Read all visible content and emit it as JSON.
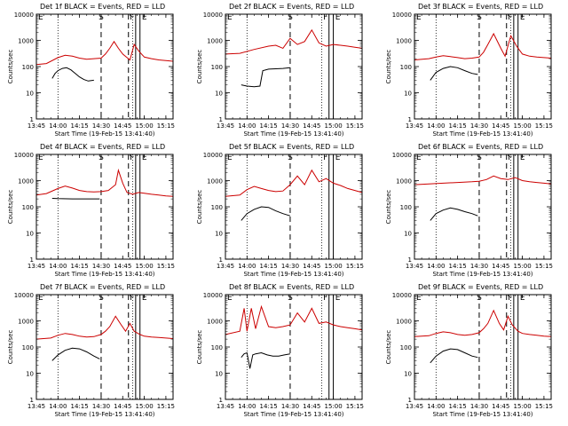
{
  "figure": {
    "background": "#ffffff",
    "event_color": "#000000",
    "lld_color": "#cc0000"
  },
  "x_tick_labels": [
    "13:45",
    "14:00",
    "14:15",
    "14:30",
    "14:45",
    "15:00",
    "15:15"
  ],
  "y_tick_labels": [
    "1",
    "10",
    "100",
    "1000",
    "10000"
  ],
  "ylabel": "Counts/sec",
  "xlabel": "Start Time (19-Feb-15 13:41:40)",
  "markers": {
    "start": "S",
    "flare": "F",
    "end": "E",
    "left": "E"
  },
  "chart_data": [
    {
      "type": "line",
      "title": "Det 1f BLACK = Events, RED = LLD",
      "xlabel": "Start Time (19-Feb-15 13:41:40)",
      "ylabel": "Counts/sec",
      "yscale": "log",
      "ylim": [
        1,
        10000
      ],
      "xlim": [
        "13:45",
        "15:20"
      ],
      "markers": {
        "dotted": [
          "14:00",
          "14:52"
        ],
        "dashed": [
          "14:30",
          "14:49"
        ],
        "solid": [
          "14:54",
          "14:57"
        ]
      },
      "series": [
        {
          "name": "Events",
          "color": "#000000",
          "x": [
            "13:56",
            "13:58",
            "14:00",
            "14:03",
            "14:06",
            "14:09",
            "14:12",
            "14:15",
            "14:18",
            "14:21",
            "14:25"
          ],
          "y": [
            35,
            55,
            70,
            85,
            90,
            75,
            55,
            40,
            32,
            28,
            30
          ]
        },
        {
          "name": "LLD",
          "color": "#cc0000",
          "x": [
            "13:45",
            "13:52",
            "14:00",
            "14:05",
            "14:10",
            "14:15",
            "14:20",
            "14:25",
            "14:30",
            "14:33",
            "14:36",
            "14:39",
            "14:42",
            "14:45",
            "14:48",
            "14:50",
            "14:53",
            "14:56",
            "15:00",
            "15:05",
            "15:10",
            "15:15",
            "15:20"
          ],
          "y": [
            120,
            130,
            220,
            270,
            250,
            210,
            190,
            200,
            210,
            300,
            500,
            900,
            500,
            300,
            220,
            180,
            700,
            400,
            230,
            200,
            180,
            170,
            160
          ]
        }
      ]
    },
    {
      "type": "line",
      "title": "Det 2f BLACK = Events, RED = LLD",
      "xlabel": "Start Time (19-Feb-15 13:41:40)",
      "ylabel": "Counts/sec",
      "yscale": "log",
      "ylim": [
        1,
        10000
      ],
      "xlim": [
        "13:45",
        "15:20"
      ],
      "markers": {
        "dotted": [
          "14:00",
          "14:52"
        ],
        "dashed": [
          "14:30"
        ],
        "solid": [
          "14:57",
          "15:00"
        ]
      },
      "series": [
        {
          "name": "Events",
          "color": "#000000",
          "x": [
            "13:56",
            "14:00",
            "14:05",
            "14:09",
            "14:11",
            "14:15",
            "14:20",
            "14:25",
            "14:30"
          ],
          "y": [
            20,
            18,
            17,
            18,
            70,
            80,
            82,
            85,
            90
          ]
        },
        {
          "name": "LLD",
          "color": "#cc0000",
          "x": [
            "13:45",
            "13:55",
            "14:05",
            "14:15",
            "14:20",
            "14:25",
            "14:30",
            "14:35",
            "14:40",
            "14:45",
            "14:50",
            "14:55",
            "15:00",
            "15:05",
            "15:10",
            "15:15",
            "15:20"
          ],
          "y": [
            300,
            320,
            450,
            600,
            650,
            500,
            1200,
            700,
            900,
            2500,
            800,
            600,
            700,
            650,
            600,
            550,
            500
          ]
        }
      ]
    },
    {
      "type": "line",
      "title": "Det 3f BLACK = Events, RED = LLD",
      "xlabel": "Start Time (19-Feb-15 13:41:40)",
      "ylabel": "Counts/sec",
      "yscale": "log",
      "ylim": [
        1,
        10000
      ],
      "xlim": [
        "13:45",
        "15:20"
      ],
      "markers": {
        "dotted": [
          "14:00",
          "14:52"
        ],
        "dashed": [
          "14:30",
          "14:49"
        ],
        "solid": [
          "14:54",
          "14:57"
        ]
      },
      "series": [
        {
          "name": "Events",
          "color": "#000000",
          "x": [
            "13:56",
            "14:00",
            "14:05",
            "14:10",
            "14:15",
            "14:20",
            "14:25",
            "14:29"
          ],
          "y": [
            30,
            60,
            85,
            100,
            90,
            70,
            55,
            50
          ]
        },
        {
          "name": "LLD",
          "color": "#cc0000",
          "x": [
            "13:45",
            "13:55",
            "14:00",
            "14:05",
            "14:10",
            "14:15",
            "14:20",
            "14:25",
            "14:30",
            "14:33",
            "14:36",
            "14:40",
            "14:45",
            "14:48",
            "14:52",
            "14:56",
            "15:00",
            "15:05",
            "15:10",
            "15:15",
            "15:20"
          ],
          "y": [
            180,
            200,
            230,
            260,
            240,
            220,
            200,
            210,
            230,
            350,
            700,
            1800,
            500,
            250,
            1500,
            600,
            300,
            250,
            230,
            220,
            210
          ]
        }
      ]
    },
    {
      "type": "line",
      "title": "Det 4f BLACK = Events, RED = LLD",
      "xlabel": "Start Time (19-Feb-15 13:41:40)",
      "ylabel": "Counts/sec",
      "yscale": "log",
      "ylim": [
        1,
        10000
      ],
      "xlim": [
        "13:45",
        "15:20"
      ],
      "markers": {
        "dotted": [
          "14:00",
          "14:52"
        ],
        "dashed": [
          "14:30",
          "14:49"
        ],
        "solid": [
          "14:54",
          "14:57"
        ]
      },
      "series": [
        {
          "name": "Events",
          "color": "#000000",
          "x": [
            "13:56",
            "14:00",
            "14:10",
            "14:20",
            "14:29"
          ],
          "y": [
            210,
            205,
            200,
            200,
            200
          ]
        },
        {
          "name": "LLD",
          "color": "#cc0000",
          "x": [
            "13:45",
            "13:52",
            "14:00",
            "14:05",
            "14:10",
            "14:15",
            "14:20",
            "14:25",
            "14:30",
            "14:35",
            "14:40",
            "14:42",
            "14:45",
            "14:48",
            "14:52",
            "14:56",
            "15:00",
            "15:05",
            "15:10",
            "15:15",
            "15:20"
          ],
          "y": [
            280,
            320,
            500,
            620,
            520,
            420,
            380,
            370,
            380,
            420,
            700,
            2500,
            800,
            350,
            300,
            350,
            330,
            300,
            280,
            260,
            250
          ]
        }
      ]
    },
    {
      "type": "line",
      "title": "Det 5f BLACK = Events, RED = LLD",
      "xlabel": "Start Time (19-Feb-15 13:41:40)",
      "ylabel": "Counts/sec",
      "yscale": "log",
      "ylim": [
        1,
        10000
      ],
      "xlim": [
        "13:45",
        "15:20"
      ],
      "markers": {
        "dotted": [
          "14:00",
          "14:52"
        ],
        "dashed": [
          "14:30"
        ],
        "solid": [
          "14:57",
          "15:00"
        ]
      },
      "series": [
        {
          "name": "Events",
          "color": "#000000",
          "x": [
            "13:56",
            "14:00",
            "14:05",
            "14:10",
            "14:15",
            "14:20",
            "14:25",
            "14:30"
          ],
          "y": [
            30,
            55,
            80,
            100,
            95,
            70,
            55,
            45
          ]
        },
        {
          "name": "LLD",
          "color": "#cc0000",
          "x": [
            "13:45",
            "13:55",
            "14:00",
            "14:05",
            "14:10",
            "14:15",
            "14:20",
            "14:25",
            "14:30",
            "14:35",
            "14:40",
            "14:45",
            "14:50",
            "14:55",
            "15:00",
            "15:05",
            "15:10",
            "15:15",
            "15:20"
          ],
          "y": [
            250,
            280,
            450,
            600,
            500,
            420,
            380,
            400,
            700,
            1500,
            700,
            2500,
            900,
            1200,
            800,
            650,
            500,
            420,
            350
          ]
        }
      ]
    },
    {
      "type": "line",
      "title": "Det 6f BLACK = Events, RED = LLD",
      "xlabel": "Start Time (19-Feb-15 13:41:40)",
      "ylabel": "Counts/sec",
      "yscale": "log",
      "ylim": [
        1,
        10000
      ],
      "xlim": [
        "13:45",
        "15:20"
      ],
      "markers": {
        "dotted": [
          "14:00",
          "14:52"
        ],
        "dashed": [
          "14:30",
          "14:49"
        ],
        "solid": [
          "14:54",
          "14:57"
        ]
      },
      "series": [
        {
          "name": "Events",
          "color": "#000000",
          "x": [
            "13:56",
            "14:00",
            "14:05",
            "14:10",
            "14:15",
            "14:20",
            "14:25",
            "14:29"
          ],
          "y": [
            30,
            55,
            75,
            90,
            80,
            65,
            55,
            45
          ]
        },
        {
          "name": "LLD",
          "color": "#cc0000",
          "x": [
            "13:45",
            "13:55",
            "14:05",
            "14:15",
            "14:25",
            "14:30",
            "14:35",
            "14:40",
            "14:45",
            "14:50",
            "14:55",
            "15:00",
            "15:05",
            "15:10",
            "15:15",
            "15:20"
          ],
          "y": [
            700,
            750,
            800,
            850,
            900,
            950,
            1100,
            1500,
            1200,
            1100,
            1300,
            1000,
            900,
            850,
            800,
            750
          ]
        }
      ]
    },
    {
      "type": "line",
      "title": "Det 7f BLACK = Events, RED = LLD",
      "xlabel": "Start Time (19-Feb-15 13:41:40)",
      "ylabel": "Counts/sec",
      "yscale": "log",
      "ylim": [
        1,
        10000
      ],
      "xlim": [
        "13:45",
        "15:20"
      ],
      "markers": {
        "dotted": [
          "14:00",
          "14:52"
        ],
        "dashed": [
          "14:30",
          "14:49"
        ],
        "solid": [
          "14:54",
          "14:57"
        ]
      },
      "series": [
        {
          "name": "Events",
          "color": "#000000",
          "x": [
            "13:56",
            "14:00",
            "14:05",
            "14:10",
            "14:15",
            "14:20",
            "14:25",
            "14:29"
          ],
          "y": [
            30,
            50,
            75,
            90,
            85,
            65,
            45,
            35
          ]
        },
        {
          "name": "LLD",
          "color": "#cc0000",
          "x": [
            "13:45",
            "13:55",
            "14:00",
            "14:05",
            "14:10",
            "14:15",
            "14:20",
            "14:25",
            "14:30",
            "14:33",
            "14:36",
            "14:40",
            "14:44",
            "14:47",
            "14:50",
            "14:53",
            "14:57",
            "15:00",
            "15:05",
            "15:10",
            "15:15",
            "15:20"
          ],
          "y": [
            200,
            220,
            280,
            330,
            300,
            260,
            240,
            250,
            300,
            400,
            600,
            1500,
            700,
            400,
            800,
            400,
            300,
            260,
            240,
            230,
            220,
            210
          ]
        }
      ]
    },
    {
      "type": "line",
      "title": "Det 8f BLACK = Events, RED = LLD",
      "xlabel": "Start Time (19-Feb-15 13:41:40)",
      "ylabel": "Counts/sec",
      "yscale": "log",
      "ylim": [
        1,
        10000
      ],
      "xlim": [
        "13:45",
        "15:20"
      ],
      "markers": {
        "dotted": [
          "14:00",
          "14:52"
        ],
        "dashed": [
          "14:30"
        ],
        "solid": [
          "14:57",
          "15:00"
        ]
      },
      "series": [
        {
          "name": "Events",
          "color": "#000000",
          "x": [
            "13:56",
            "13:58",
            "14:00",
            "14:02",
            "14:04",
            "14:06",
            "14:10",
            "14:14",
            "14:18",
            "14:22",
            "14:26",
            "14:30"
          ],
          "y": [
            40,
            55,
            60,
            15,
            50,
            55,
            60,
            50,
            45,
            45,
            50,
            55
          ]
        },
        {
          "name": "LLD",
          "color": "#cc0000",
          "x": [
            "13:45",
            "13:55",
            "13:58",
            "14:00",
            "14:03",
            "14:06",
            "14:10",
            "14:15",
            "14:20",
            "14:25",
            "14:30",
            "14:35",
            "14:40",
            "14:45",
            "14:50",
            "14:55",
            "15:00",
            "15:05",
            "15:10",
            "15:15",
            "15:20"
          ],
          "y": [
            300,
            400,
            3000,
            400,
            3000,
            500,
            3500,
            600,
            550,
            600,
            700,
            2000,
            900,
            3000,
            800,
            900,
            700,
            600,
            550,
            500,
            450
          ]
        }
      ]
    },
    {
      "type": "line",
      "title": "Det 9f BLACK = Events, RED = LLD",
      "xlabel": "Start Time (19-Feb-15 13:41:40)",
      "ylabel": "Counts/sec",
      "yscale": "log",
      "ylim": [
        1,
        10000
      ],
      "xlim": [
        "13:45",
        "15:20"
      ],
      "markers": {
        "dotted": [
          "14:00",
          "14:52"
        ],
        "dashed": [
          "14:30",
          "14:49"
        ],
        "solid": [
          "14:54",
          "14:57"
        ]
      },
      "series": [
        {
          "name": "Events",
          "color": "#000000",
          "x": [
            "13:56",
            "14:00",
            "14:05",
            "14:10",
            "14:15",
            "14:20",
            "14:25",
            "14:29"
          ],
          "y": [
            25,
            45,
            70,
            85,
            80,
            60,
            45,
            40
          ]
        },
        {
          "name": "LLD",
          "color": "#cc0000",
          "x": [
            "13:45",
            "13:55",
            "14:00",
            "14:05",
            "14:10",
            "14:15",
            "14:20",
            "14:25",
            "14:30",
            "14:33",
            "14:36",
            "14:40",
            "14:44",
            "14:47",
            "14:50",
            "14:53",
            "14:57",
            "15:00",
            "15:05",
            "15:10",
            "15:15",
            "15:20"
          ],
          "y": [
            250,
            270,
            330,
            380,
            350,
            300,
            280,
            300,
            350,
            500,
            800,
            2500,
            800,
            450,
            1500,
            700,
            400,
            330,
            300,
            280,
            260,
            250
          ]
        }
      ]
    }
  ]
}
